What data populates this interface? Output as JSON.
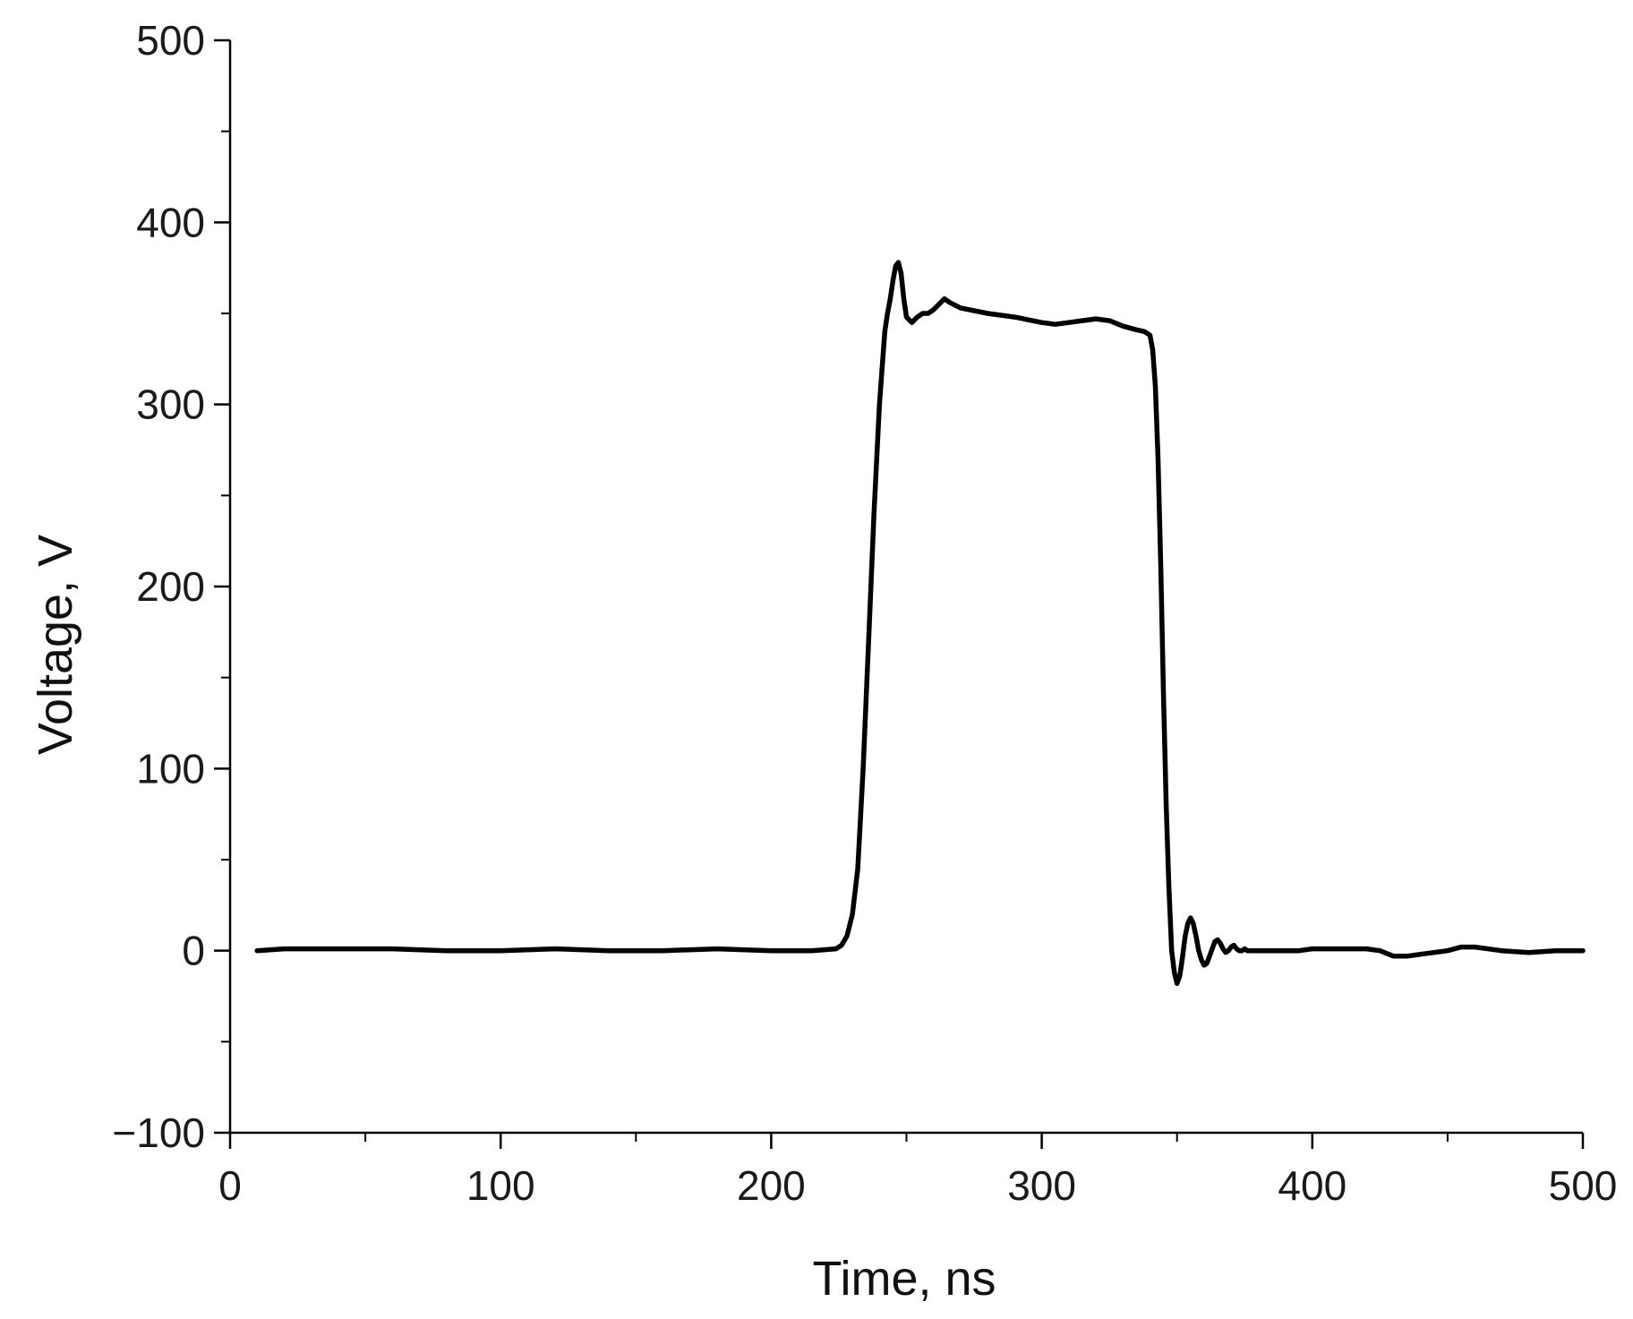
{
  "chart_data": {
    "type": "line",
    "title": "",
    "xlabel": "Time, ns",
    "ylabel": "Voltage, V",
    "xlim": [
      0,
      500
    ],
    "ylim": [
      -100,
      500
    ],
    "x_ticks": [
      0,
      100,
      200,
      300,
      400,
      500
    ],
    "y_ticks": [
      -100,
      0,
      100,
      200,
      300,
      400,
      500
    ],
    "x_tick_labels": [
      "0",
      "100",
      "200",
      "300",
      "400",
      "500"
    ],
    "y_tick_labels": [
      "−100",
      "0",
      "100",
      "200",
      "300",
      "400",
      "500"
    ],
    "x_minor_step": 50,
    "y_minor_step": 50,
    "grid": false,
    "line_color": "#000000",
    "series": [
      {
        "x": [
          10,
          20,
          40,
          60,
          80,
          100,
          120,
          140,
          160,
          180,
          200,
          215,
          224,
          226,
          228,
          230,
          232,
          234,
          236,
          238,
          240,
          242,
          243,
          244,
          245,
          246,
          247,
          248,
          249,
          250,
          252,
          254,
          256,
          258,
          260,
          262,
          264,
          266,
          270,
          280,
          290,
          300,
          305,
          310,
          315,
          320,
          325,
          330,
          335,
          338,
          340,
          341,
          342,
          343,
          344,
          345,
          346,
          347,
          348,
          349,
          350,
          351,
          352,
          353,
          354,
          355,
          356,
          357,
          358,
          359,
          360,
          361,
          362,
          363,
          364,
          365,
          366,
          367,
          368,
          369,
          370,
          371,
          372,
          373,
          374,
          375,
          376,
          377,
          378,
          380,
          385,
          390,
          395,
          400,
          410,
          420,
          425,
          430,
          435,
          440,
          450,
          455,
          460,
          470,
          480,
          490,
          500
        ],
        "y": [
          0,
          1,
          1,
          1,
          0,
          0,
          1,
          0,
          0,
          1,
          0,
          0,
          1,
          3,
          8,
          20,
          45,
          100,
          170,
          240,
          300,
          340,
          350,
          358,
          368,
          376,
          378,
          372,
          358,
          348,
          345,
          348,
          350,
          350,
          352,
          355,
          358,
          356,
          353,
          350,
          348,
          345,
          344,
          345,
          346,
          347,
          346,
          343,
          341,
          340,
          338,
          330,
          310,
          270,
          210,
          140,
          80,
          35,
          0,
          -12,
          -18,
          -14,
          -4,
          8,
          15,
          18,
          15,
          8,
          0,
          -5,
          -8,
          -7,
          -3,
          1,
          5,
          6,
          4,
          1,
          -1,
          0,
          2,
          3,
          1,
          0,
          0,
          1,
          0,
          0,
          0,
          0,
          0,
          0,
          0,
          1,
          1,
          1,
          0,
          -3,
          -3,
          -2,
          0,
          2,
          2,
          0,
          -1,
          0,
          0
        ]
      }
    ]
  }
}
